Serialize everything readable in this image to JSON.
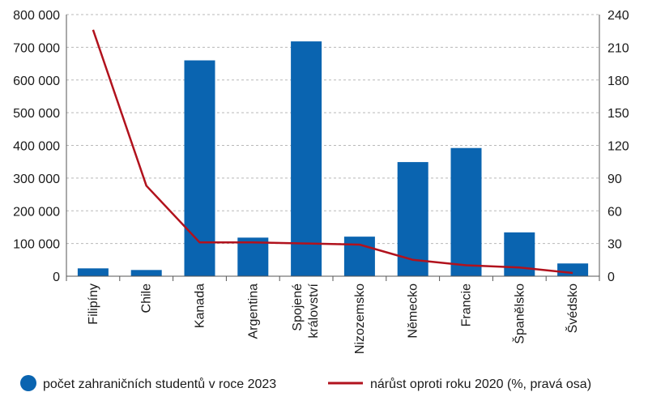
{
  "chart_data": {
    "type": "bar",
    "categories": [
      "Filipíny",
      "Chile",
      "Kanada",
      "Argentina",
      "Spojené království",
      "Nizozemsko",
      "Německo",
      "Francie",
      "Španělsko",
      "Švédsko"
    ],
    "series": [
      {
        "name": "počet zahraničních studentů v roce 2023",
        "type": "bar",
        "axis": "left",
        "color": "#0a64b0",
        "values": [
          24000,
          19000,
          660000,
          118000,
          718000,
          121000,
          349000,
          392000,
          134000,
          39000
        ]
      },
      {
        "name": "nárůst oproti roku 2020 (%, pravá  osa)",
        "type": "line",
        "axis": "right",
        "color": "#b1121d",
        "values": [
          226,
          83,
          31,
          31,
          30,
          29,
          15,
          10,
          8,
          3
        ]
      }
    ],
    "y_left": {
      "ylim": [
        0,
        800000
      ],
      "tick_values": [
        0,
        100000,
        200000,
        300000,
        400000,
        500000,
        600000,
        700000,
        800000
      ],
      "tick_labels": [
        "0",
        "100 000",
        "200 000",
        "300 000",
        "400 000",
        "500 000",
        "600 000",
        "700 000",
        "800 000"
      ]
    },
    "y_right": {
      "ylim": [
        0,
        240
      ],
      "tick_values": [
        0,
        30,
        60,
        90,
        120,
        150,
        180,
        210,
        240
      ],
      "tick_labels": [
        "0",
        "30",
        "60",
        "90",
        "120",
        "150",
        "180",
        "210",
        "240"
      ]
    },
    "grid": true,
    "legend_position": "bottom"
  }
}
